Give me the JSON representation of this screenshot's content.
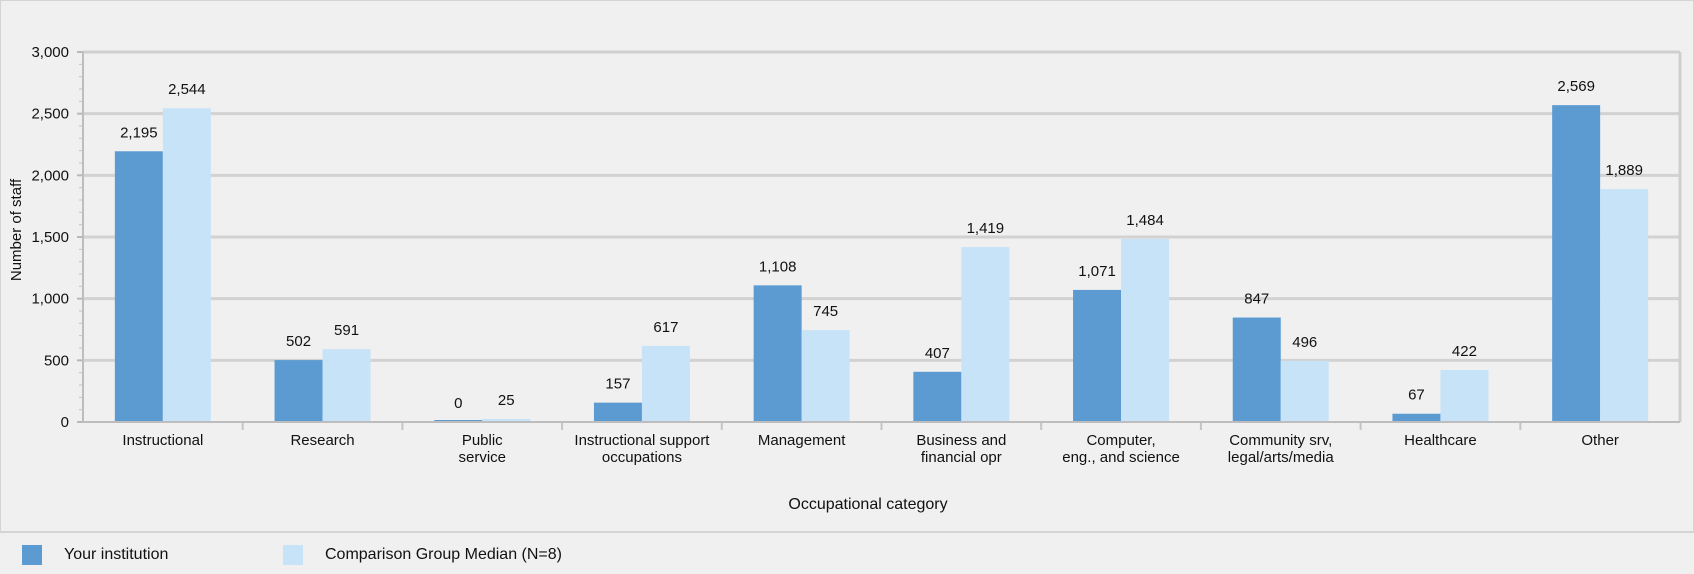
{
  "chart_data": {
    "type": "bar",
    "title": "",
    "xlabel": "Occupational category",
    "ylabel": "Number of staff",
    "ylim": [
      0,
      3000
    ],
    "yticks": [
      0,
      500,
      1000,
      1500,
      2000,
      2500,
      3000
    ],
    "ytick_labels": [
      "0",
      "500",
      "1,000",
      "1,500",
      "2,000",
      "2,500",
      "3,000"
    ],
    "grid": true,
    "legend_position": "bottom",
    "categories": [
      [
        "Instructional"
      ],
      [
        "Research"
      ],
      [
        "Public",
        "service"
      ],
      [
        "Instructional support",
        "occupations"
      ],
      [
        "Management"
      ],
      [
        "Business and",
        "financial opr"
      ],
      [
        "Computer,",
        "eng., and science"
      ],
      [
        "Community srv,",
        "legal/arts/media"
      ],
      [
        "Healthcare"
      ],
      [
        "Other"
      ]
    ],
    "series": [
      {
        "name": "Your institution",
        "color": "#5b9bd1",
        "values": [
          2195,
          502,
          0,
          157,
          1108,
          407,
          1071,
          847,
          67,
          2569
        ],
        "labels": [
          "2,195",
          "502",
          "0",
          "157",
          "1,108",
          "407",
          "1,071",
          "847",
          "67",
          "2,569"
        ]
      },
      {
        "name": "Comparison Group Median (N=8)",
        "color": "#c7e3f7",
        "values": [
          2544,
          591,
          25,
          617,
          745,
          1419,
          1484,
          496,
          422,
          1889
        ],
        "labels": [
          "2,544",
          "591",
          "25",
          "617",
          "745",
          "1,419",
          "1,484",
          "496",
          "422",
          "1,889"
        ]
      }
    ]
  }
}
